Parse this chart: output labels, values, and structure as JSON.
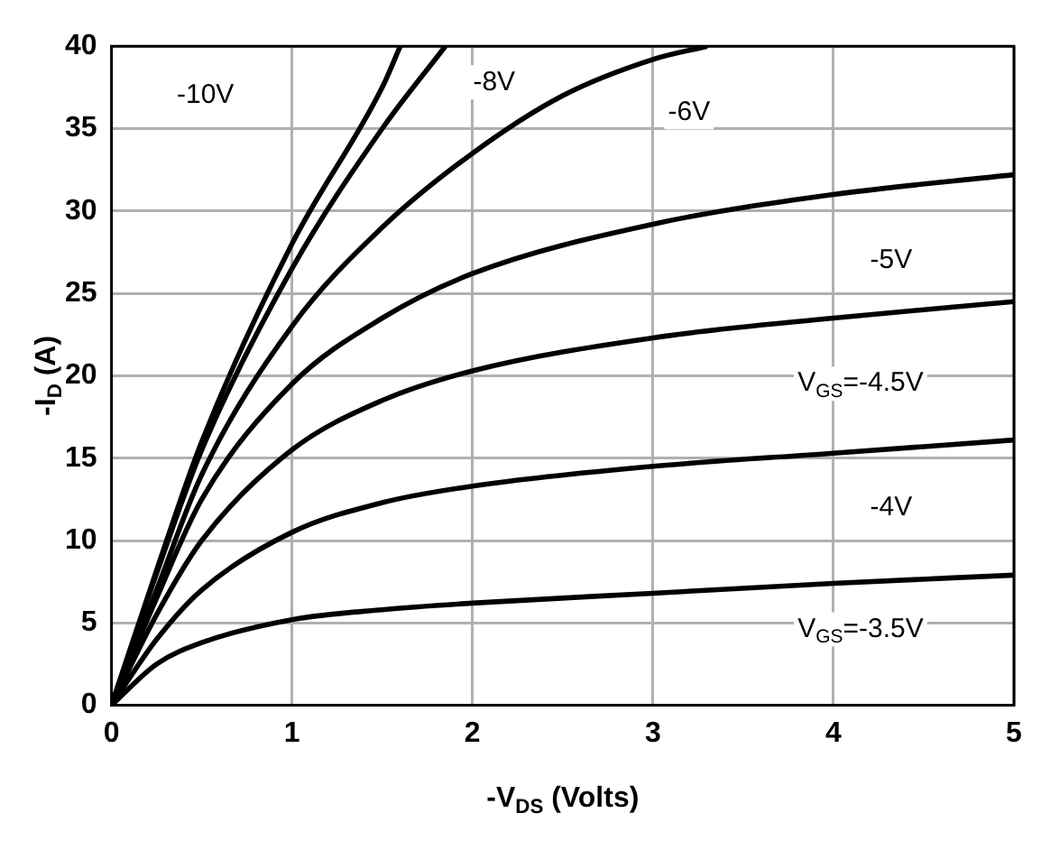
{
  "chart_data": {
    "type": "line",
    "xlabel": "-V$_{DS}$ (Volts)",
    "ylabel": "-I$_{D}$ (A)",
    "xlim": [
      0,
      5
    ],
    "ylim": [
      0,
      40
    ],
    "xticks": [
      0,
      1,
      2,
      3,
      4,
      5
    ],
    "yticks": [
      0,
      5,
      10,
      15,
      20,
      25,
      30,
      35,
      40
    ],
    "grid": true,
    "legend": false,
    "marker": "none",
    "line_style": "solid",
    "series": [
      {
        "color": "#000000",
        "x": [
          0,
          0.25,
          0.5,
          1,
          1.5,
          2,
          3,
          4,
          5
        ],
        "values": [
          0,
          2.5,
          3.8,
          5.2,
          5.8,
          6.2,
          6.8,
          7.4,
          7.9
        ]
      },
      {
        "color": "#000000",
        "x": [
          0,
          0.25,
          0.5,
          1,
          1.5,
          2,
          3,
          4,
          5
        ],
        "values": [
          0,
          4,
          7,
          10.5,
          12.3,
          13.3,
          14.5,
          15.3,
          16.1
        ]
      },
      {
        "color": "#000000",
        "x": [
          0,
          0.25,
          0.5,
          1,
          1.5,
          2,
          3,
          4,
          5
        ],
        "values": [
          0,
          5.5,
          10,
          15.5,
          18.5,
          20.3,
          22.3,
          23.5,
          24.5
        ]
      },
      {
        "color": "#000000",
        "x": [
          0,
          0.25,
          0.5,
          1,
          1.5,
          2,
          3,
          4,
          5
        ],
        "values": [
          0,
          6.5,
          12.5,
          19.5,
          23.5,
          26.2,
          29.2,
          31,
          32.2
        ]
      },
      {
        "color": "#000000",
        "x": [
          0,
          0.25,
          0.5,
          1,
          1.5,
          2,
          2.5,
          3,
          3.3
        ],
        "values": [
          0,
          7,
          14,
          23,
          29,
          33.5,
          37,
          39.2,
          40
        ]
      },
      {
        "color": "#000000",
        "x": [
          0,
          0.25,
          0.5,
          1,
          1.5,
          1.85
        ],
        "values": [
          0,
          8,
          15.5,
          26.5,
          35,
          40
        ]
      },
      {
        "color": "#000000",
        "x": [
          0,
          0.25,
          0.5,
          1,
          1.5,
          1.6
        ],
        "values": [
          0,
          8.2,
          16,
          28,
          37.5,
          40
        ]
      }
    ],
    "annotations": [
      {
        "text": "-10V",
        "x": 0.52,
        "y": 37
      },
      {
        "text": "-8V",
        "x": 2.12,
        "y": 37.8
      },
      {
        "text": "-6V",
        "x": 3.2,
        "y": 36
      },
      {
        "text": "-5V",
        "x": 4.32,
        "y": 27
      },
      "V$_{GS}$=-4.5V",
      {
        "text": "-4V",
        "x": 4.32,
        "y": 12
      },
      "V$_{GS}$=-3.5V"
    ]
  }
}
